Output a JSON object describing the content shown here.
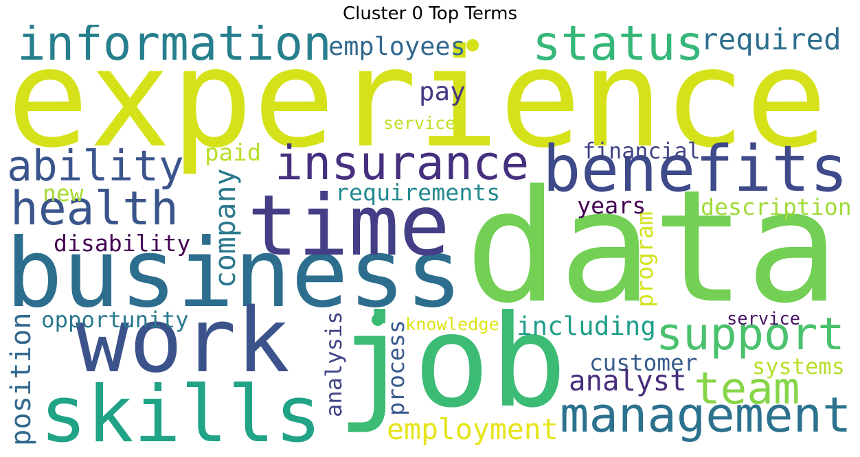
{
  "title": "Cluster 0 Top Terms",
  "words": [
    {
      "id": "experience",
      "text": "experience",
      "color": "#d5e21a"
    },
    {
      "id": "data",
      "text": "data",
      "color": "#73d055"
    },
    {
      "id": "business",
      "text": "business",
      "color": "#2d6e8e"
    },
    {
      "id": "job",
      "text": "job",
      "color": "#3cbb75"
    },
    {
      "id": "time",
      "text": "time",
      "color": "#433e85"
    },
    {
      "id": "work",
      "text": "work",
      "color": "#3b528b"
    },
    {
      "id": "skills",
      "text": "skills",
      "color": "#20a386"
    },
    {
      "id": "benefits",
      "text": "benefits",
      "color": "#3e4a89"
    },
    {
      "id": "information",
      "text": "information",
      "color": "#277f8e"
    },
    {
      "id": "status",
      "text": "status",
      "color": "#35b779"
    },
    {
      "id": "insurance",
      "text": "insurance",
      "color": "#46307e"
    },
    {
      "id": "management",
      "text": "management",
      "color": "#2c728e"
    },
    {
      "id": "support",
      "text": "support",
      "color": "#4ac16d"
    },
    {
      "id": "health",
      "text": "health",
      "color": "#39558c"
    },
    {
      "id": "ability",
      "text": "ability",
      "color": "#3a548c"
    },
    {
      "id": "team",
      "text": "team",
      "color": "#86d549"
    },
    {
      "id": "required",
      "text": "required",
      "color": "#2e6f8e"
    },
    {
      "id": "employees",
      "text": "employees",
      "color": "#31688e"
    },
    {
      "id": "pay",
      "text": "pay",
      "color": "#453781"
    },
    {
      "id": "services",
      "text": "services",
      "color": "#c0df25"
    },
    {
      "id": "paid",
      "text": "paid",
      "color": "#b8de29"
    },
    {
      "id": "financial",
      "text": "financial",
      "color": "#414487"
    },
    {
      "id": "requirements",
      "text": "requirements",
      "color": "#23898e"
    },
    {
      "id": "new",
      "text": "new",
      "color": "#a8db34"
    },
    {
      "id": "company",
      "text": "company",
      "color": "#2a788e"
    },
    {
      "id": "years",
      "text": "years",
      "color": "#440154"
    },
    {
      "id": "description",
      "text": "description",
      "color": "#a0da39"
    },
    {
      "id": "disability",
      "text": "disability",
      "color": "#440154"
    },
    {
      "id": "program",
      "text": "program",
      "color": "#d2e21b"
    },
    {
      "id": "opportunity",
      "text": "opportunity",
      "color": "#2a788e"
    },
    {
      "id": "including",
      "text": "including",
      "color": "#1f9e89"
    },
    {
      "id": "knowledge",
      "text": "knowledge",
      "color": "#dde318"
    },
    {
      "id": "service",
      "text": "service",
      "color": "#471164"
    },
    {
      "id": "position",
      "text": "position",
      "color": "#31688e"
    },
    {
      "id": "analysis",
      "text": "analysis",
      "color": "#414487"
    },
    {
      "id": "process",
      "text": "process",
      "color": "#38598c"
    },
    {
      "id": "customer",
      "text": "customer",
      "color": "#365c8d"
    },
    {
      "id": "systems",
      "text": "systems",
      "color": "#b5de2b"
    },
    {
      "id": "analyst",
      "text": "analyst",
      "color": "#472d7b"
    },
    {
      "id": "employment",
      "text": "employment",
      "color": "#e5e419"
    }
  ]
}
